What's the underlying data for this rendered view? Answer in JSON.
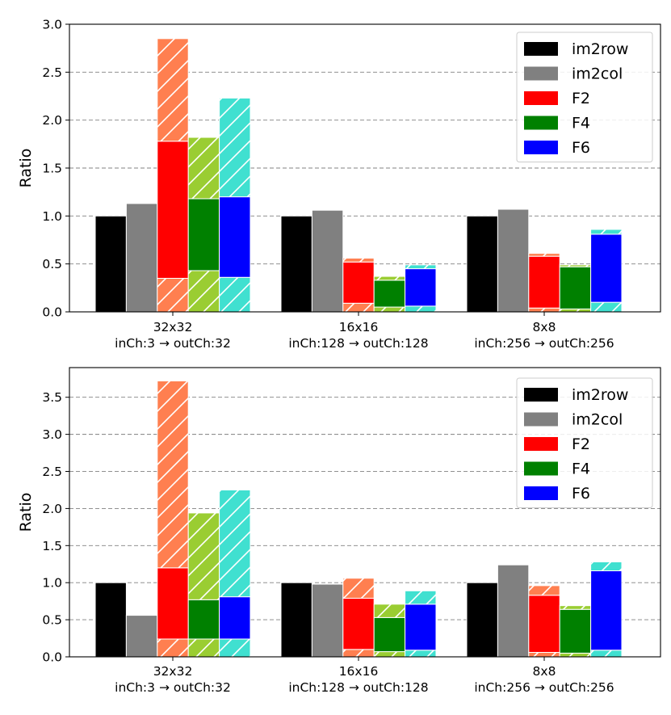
{
  "chart_data": [
    {
      "type": "bar",
      "stacked": true,
      "ylabel": "Ratio",
      "ylim": [
        0,
        3.0
      ],
      "yticks": [
        "0.0",
        "0.5",
        "1.0",
        "1.5",
        "2.0",
        "2.5",
        "3.0"
      ],
      "grid": "horizontal-dashed",
      "legend_position": "top-right",
      "groups": [
        {
          "name": "32x32",
          "subtitle": "inCh:3 → outCh:32"
        },
        {
          "name": "16x16",
          "subtitle": "inCh:128 → outCh:128"
        },
        {
          "name": "8x8",
          "subtitle": "inCh:256 → outCh:256"
        }
      ],
      "series": [
        {
          "name": "im2row",
          "kind": "solid",
          "values": [
            1.0,
            1.0,
            1.0
          ]
        },
        {
          "name": "im2col",
          "kind": "solid",
          "values": [
            1.13,
            1.06,
            1.07
          ]
        },
        {
          "name": "F2",
          "kind": "winograd",
          "segments": [
            [
              0.35,
              1.78,
              2.85
            ],
            [
              0.09,
              0.52,
              0.56
            ],
            [
              0.04,
              0.58,
              0.61
            ]
          ]
        },
        {
          "name": "F4",
          "kind": "winograd",
          "segments": [
            [
              0.43,
              1.18,
              1.82
            ],
            [
              0.05,
              0.33,
              0.37
            ],
            [
              0.03,
              0.47,
              0.49
            ]
          ]
        },
        {
          "name": "F6",
          "kind": "winograd",
          "segments": [
            [
              0.36,
              1.2,
              2.23
            ],
            [
              0.06,
              0.45,
              0.49
            ],
            [
              0.1,
              0.81,
              0.86
            ]
          ]
        }
      ]
    },
    {
      "type": "bar",
      "stacked": true,
      "ylabel": "Ratio",
      "ylim": [
        0,
        3.9
      ],
      "yticks": [
        "0.0",
        "0.5",
        "1.0",
        "1.5",
        "2.0",
        "2.5",
        "3.0",
        "3.5"
      ],
      "grid": "horizontal-dashed",
      "legend_position": "top-right",
      "groups": [
        {
          "name": "32x32",
          "subtitle": "inCh:3 → outCh:32"
        },
        {
          "name": "16x16",
          "subtitle": "inCh:128 → outCh:128"
        },
        {
          "name": "8x8",
          "subtitle": "inCh:256 → outCh:256"
        }
      ],
      "series": [
        {
          "name": "im2row",
          "kind": "solid",
          "values": [
            1.0,
            1.0,
            1.0
          ]
        },
        {
          "name": "im2col",
          "kind": "solid",
          "values": [
            0.56,
            0.98,
            1.24
          ]
        },
        {
          "name": "F2",
          "kind": "winograd",
          "segments": [
            [
              0.24,
              1.2,
              3.72
            ],
            [
              0.1,
              0.79,
              1.06
            ],
            [
              0.06,
              0.83,
              0.96
            ]
          ]
        },
        {
          "name": "F4",
          "kind": "winograd",
          "segments": [
            [
              0.24,
              0.77,
              1.94
            ],
            [
              0.07,
              0.53,
              0.71
            ],
            [
              0.05,
              0.64,
              0.69
            ]
          ]
        },
        {
          "name": "F6",
          "kind": "winograd",
          "segments": [
            [
              0.24,
              0.81,
              2.25
            ],
            [
              0.09,
              0.71,
              0.89
            ],
            [
              0.09,
              1.16,
              1.28
            ]
          ]
        }
      ]
    }
  ],
  "colors": {
    "im2row": "#000000",
    "im2col": "#808080",
    "F2": "#ff0000",
    "F4": "#008000",
    "F6": "#0000ff",
    "F2_light": "#ff7f50",
    "F4_light": "#9acd32",
    "F6_light": "#40e0d0",
    "grid": "#808080"
  }
}
